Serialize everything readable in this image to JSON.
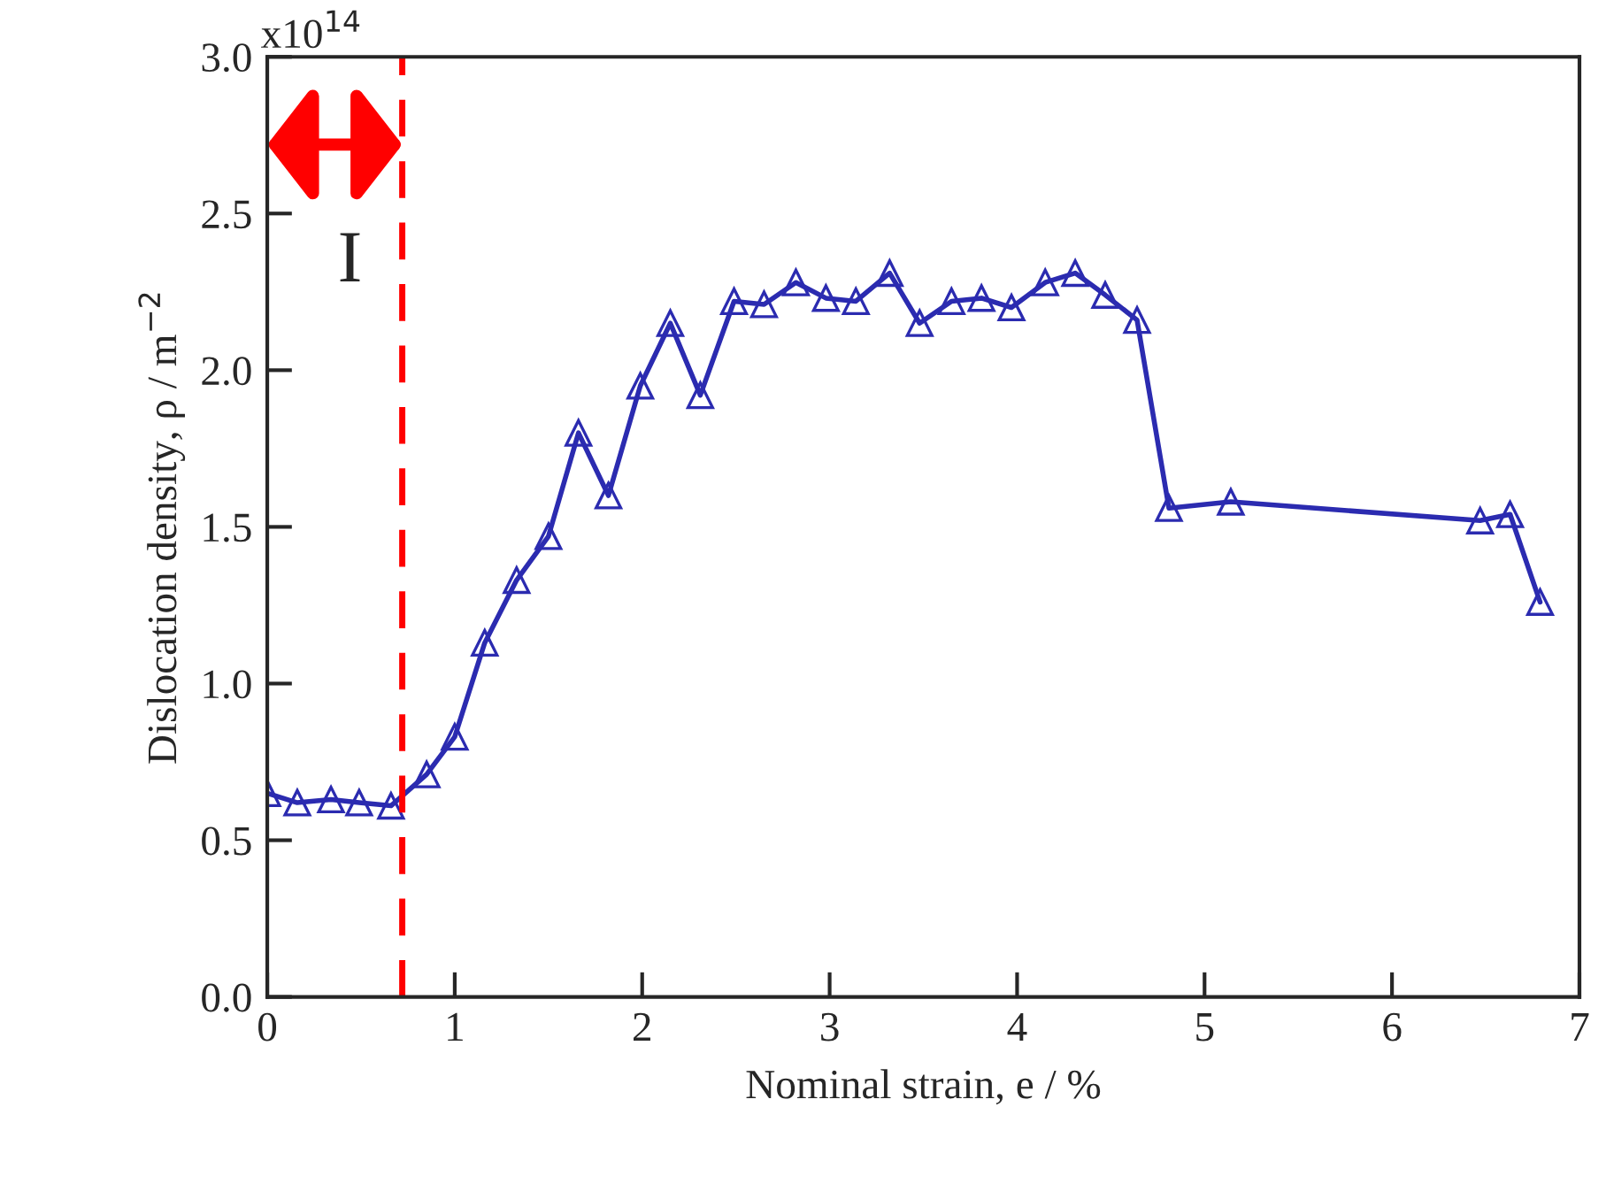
{
  "chart_data": {
    "type": "line",
    "xlabel": "Nominal strain, e / %",
    "ylabel": "Dislocation density, ρ / m$^{−2}$",
    "series": [
      {
        "color": "#2b2bb0",
        "x": [
          0,
          0.16,
          0.34,
          0.49,
          0.66,
          0.85,
          1.0,
          1.16,
          1.33,
          1.5,
          1.66,
          1.82,
          1.99,
          2.15,
          2.31,
          2.49,
          2.65,
          2.82,
          2.98,
          3.14,
          3.32,
          3.48,
          3.65,
          3.81,
          3.97,
          4.15,
          4.31,
          4.47,
          4.64,
          4.81,
          5.14,
          6.47,
          6.63,
          6.79
        ],
        "values": [
          0.65,
          0.62,
          0.63,
          0.62,
          0.61,
          0.71,
          0.83,
          1.13,
          1.33,
          1.47,
          1.8,
          1.6,
          1.95,
          2.15,
          1.92,
          2.22,
          2.21,
          2.28,
          2.23,
          2.22,
          2.31,
          2.15,
          2.22,
          2.23,
          2.2,
          2.28,
          2.31,
          2.24,
          2.16,
          1.56,
          1.58,
          1.52,
          1.54,
          1.26
        ]
      }
    ],
    "marker": "triangle",
    "line_style": "solid",
    "xlim": [
      0,
      7
    ],
    "xticks": [
      0,
      1,
      2,
      3,
      4,
      5,
      6,
      7
    ],
    "ylim": [
      0,
      3.0
    ],
    "yticks": [
      {
        "value": 0.0,
        "label": "0.0"
      },
      {
        "value": 0.5,
        "label": "0.5"
      },
      {
        "value": 1.0,
        "label": "1.0"
      },
      {
        "value": 1.5,
        "label": "1.5"
      },
      {
        "value": 2.0,
        "label": "2.0"
      },
      {
        "value": 2.5,
        "label": "2.5"
      },
      {
        "value": 3.0,
        "label": "3.0"
      }
    ],
    "ref_lines": [
      {
        "axis": "x",
        "value": 0.72,
        "color": "#ff0000",
        "line_style": "dashed"
      }
    ],
    "annotations": [
      "I",
      "x10$^{14}$"
    ],
    "grid": false,
    "legend": false
  }
}
